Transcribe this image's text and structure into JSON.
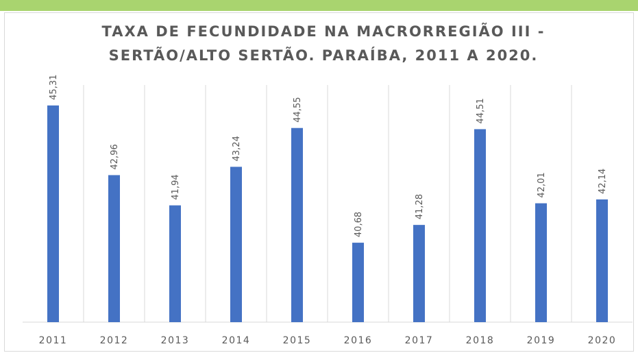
{
  "chart_data": {
    "type": "bar",
    "title": [
      "TAXA DE FECUNDIDADE NA MACRORREGIÃO III -",
      "SERTÃO/ALTO SERTÃO. PARAÍBA, 2011 A 2020."
    ],
    "categories": [
      "2011",
      "2012",
      "2013",
      "2014",
      "2015",
      "2016",
      "2017",
      "2018",
      "2019",
      "2020"
    ],
    "values": [
      45.31,
      42.96,
      41.94,
      43.24,
      44.55,
      40.68,
      41.28,
      44.51,
      42.01,
      42.14
    ],
    "value_labels": [
      "45,31",
      "42,96",
      "41,94",
      "43,24",
      "44,55",
      "40,68",
      "41,28",
      "44,51",
      "42,01",
      "42,14"
    ],
    "color": "#4472c4",
    "ylim": [
      38,
      46
    ]
  }
}
